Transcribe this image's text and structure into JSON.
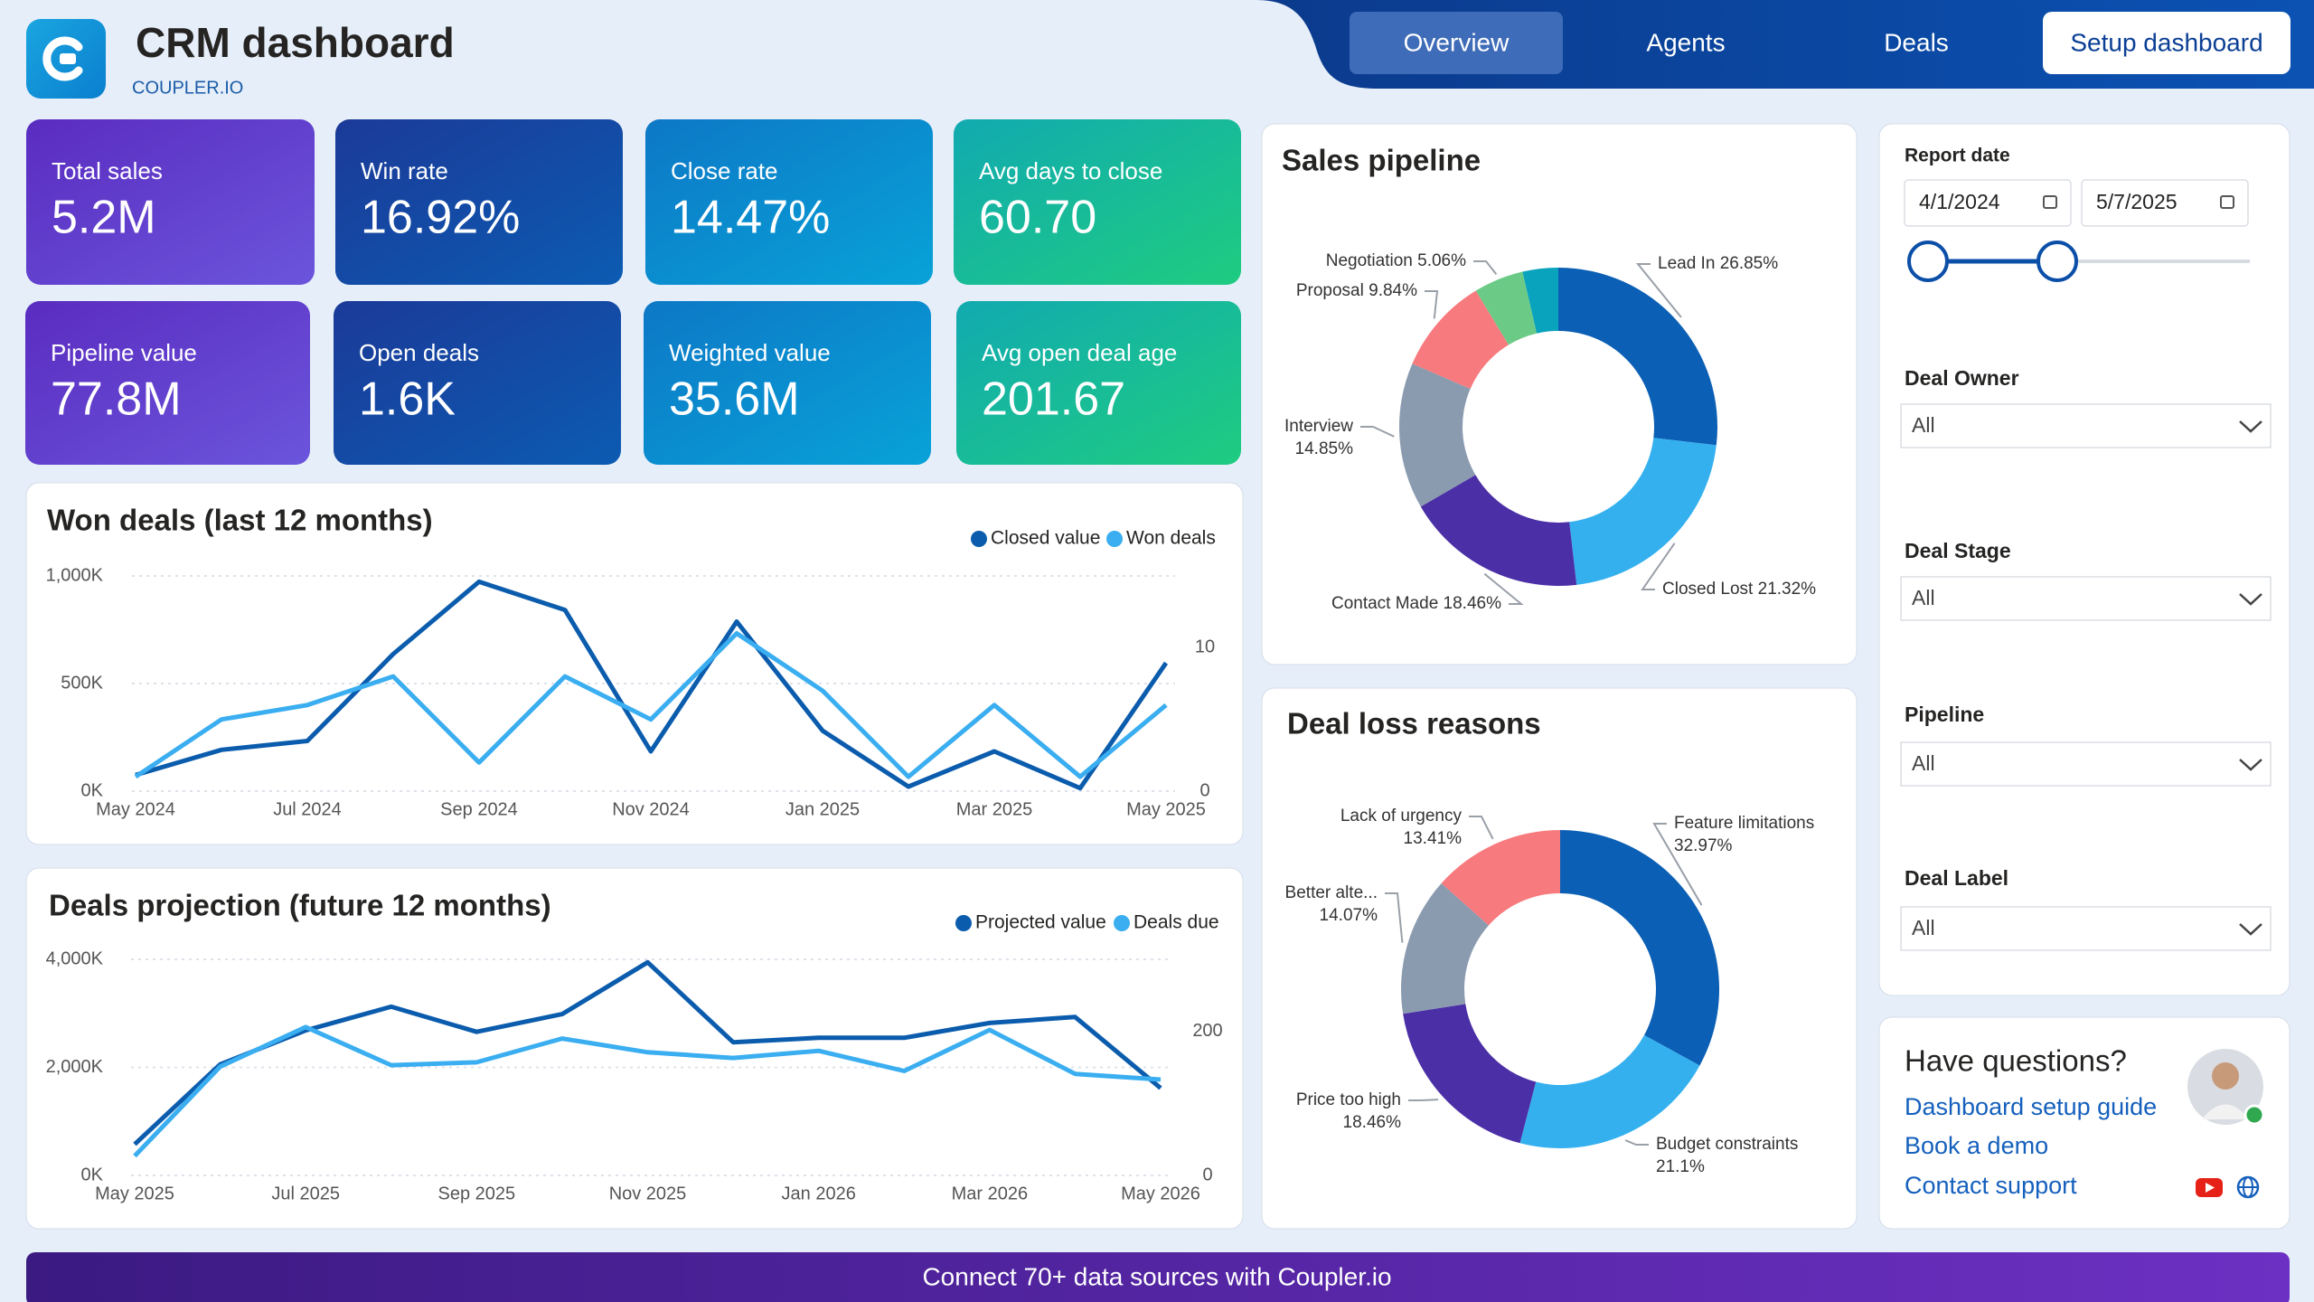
{
  "header": {
    "title": "CRM dashboard",
    "brand": "COUPLER.IO"
  },
  "nav": {
    "tabs": [
      "Overview",
      "Agents",
      "Deals"
    ],
    "button": "Setup dashboard"
  },
  "kpis": [
    {
      "label": "Total sales",
      "value": "5.2M"
    },
    {
      "label": "Win rate",
      "value": "16.92%"
    },
    {
      "label": "Close rate",
      "value": "14.47%"
    },
    {
      "label": "Avg days to close",
      "value": "60.70"
    },
    {
      "label": "Pipeline value",
      "value": "77.8M"
    },
    {
      "label": "Open deals",
      "value": "1.6K"
    },
    {
      "label": "Weighted value",
      "value": "35.6M"
    },
    {
      "label": "Avg open deal age",
      "value": "201.67"
    }
  ],
  "chart_data": [
    {
      "type": "line",
      "title": "Won deals (last 12 months)",
      "categories": [
        "May 2024",
        null,
        "Jul 2024",
        null,
        "Sep 2024",
        null,
        "Nov 2024",
        null,
        "Jan 2025",
        null,
        "Mar 2025",
        null,
        "May 2025"
      ],
      "series": [
        {
          "name": "Closed value",
          "color": "#0b5cad",
          "values": [
            75,
            192,
            233,
            637,
            973,
            842,
            185,
            788,
            281,
            21,
            185,
            14,
            596
          ]
        },
        {
          "name": "Won deals",
          "color": "#3aaef0",
          "axis": "y2",
          "values": [
            1,
            5,
            6,
            8,
            2,
            8,
            5,
            11,
            7,
            1,
            6,
            1,
            6
          ]
        }
      ],
      "ylim": [
        0,
        1000
      ],
      "yticks": [
        {
          "value": 0,
          "label": "0K"
        },
        {
          "value": 500,
          "label": "500K"
        },
        {
          "value": 1000,
          "label": "1,000K"
        }
      ],
      "y2lim": [
        0,
        15
      ],
      "y2ticks": [
        0,
        10
      ],
      "grid": true
    },
    {
      "type": "line",
      "title": "Deals projection (future 12 months)",
      "categories": [
        "May 2025",
        null,
        "Jul 2025",
        null,
        "Sep 2025",
        null,
        "Nov 2025",
        null,
        "Jan 2026",
        null,
        "Mar 2026",
        null,
        "May 2026"
      ],
      "series": [
        {
          "name": "Projected value",
          "color": "#0b5cad",
          "values": [
            575,
            2055,
            2685,
            3123,
            2658,
            2986,
            3945,
            2466,
            2548,
            2548,
            2822,
            2932,
            1616
          ]
        },
        {
          "name": "Deals due",
          "color": "#3aaef0",
          "axis": "y2",
          "values": [
            27,
            151,
            206,
            153,
            157,
            190,
            171,
            163,
            173,
            145,
            202,
            141,
            133
          ]
        }
      ],
      "ylim": [
        0,
        4000
      ],
      "yticks": [
        {
          "value": 0,
          "label": "0K"
        },
        {
          "value": 2000,
          "label": "2,000K"
        },
        {
          "value": 4000,
          "label": "4,000K"
        }
      ],
      "y2lim": [
        0,
        300
      ],
      "y2ticks": [
        0,
        200
      ],
      "grid": true
    },
    {
      "type": "donut",
      "title": "Sales pipeline",
      "categories": [
        "Lead In",
        "Closed Lost",
        "Contact Made",
        "Interview",
        "Proposal",
        "Negotiation",
        null
      ],
      "values": [
        26.85,
        21.32,
        18.46,
        14.85,
        9.84,
        5.06,
        3.62
      ],
      "value_labels": [
        "26.85%",
        "21.32%",
        "18.46%",
        "14.85%",
        "9.84%",
        "5.06%",
        null
      ],
      "colors": [
        "#0b5fb4",
        "#35b0ef",
        "#4b2fa6",
        "#8a9bb0",
        "#f77a7e",
        "#6bcb86",
        "#0aa3bd"
      ]
    },
    {
      "type": "donut",
      "title": "Deal loss reasons",
      "categories": [
        "Feature limitations",
        "Budget constraints",
        "Price too high",
        "Better alte...",
        "Lack of urgency"
      ],
      "values": [
        32.97,
        21.1,
        18.46,
        14.07,
        13.41
      ],
      "value_labels": [
        "32.97%",
        "21.1%",
        "18.46%",
        "14.07%",
        "13.41%"
      ],
      "colors": [
        "#0b5fb4",
        "#35b0ef",
        "#4b2fa6",
        "#8a9bb0",
        "#f77a7e"
      ]
    }
  ],
  "filters": {
    "report_date": {
      "label": "Report date",
      "from": "4/1/2024",
      "to": "5/7/2025"
    },
    "dropdowns": [
      {
        "label": "Deal Owner",
        "value": "All"
      },
      {
        "label": "Deal Stage",
        "value": "All"
      },
      {
        "label": "Pipeline",
        "value": "All"
      },
      {
        "label": "Deal Label",
        "value": "All"
      }
    ]
  },
  "help": {
    "title": "Have questions?",
    "links": [
      "Dashboard setup guide",
      "Book a demo",
      "Contact support"
    ]
  },
  "footer": "Connect 70+ data sources with Coupler.io"
}
